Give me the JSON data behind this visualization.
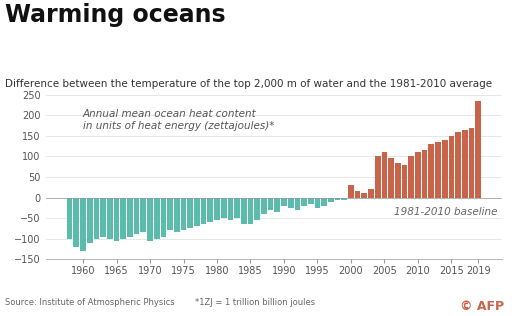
{
  "title": "Warming oceans",
  "subtitle": "Difference between the temperature of the top 2,000 m of water and the 1981-2010 average",
  "annotation": "Annual mean ocean heat content\nin units of heat energy (zettajoules)*",
  "baseline_label": "1981-2010 baseline",
  "source_text": "Source: Institute of Atmospheric Physics",
  "footnote": "*1ZJ = 1 trillion billion joules",
  "afp_text": "© AFP",
  "years": [
    1958,
    1959,
    1960,
    1961,
    1962,
    1963,
    1964,
    1965,
    1966,
    1967,
    1968,
    1969,
    1970,
    1971,
    1972,
    1973,
    1974,
    1975,
    1976,
    1977,
    1978,
    1979,
    1980,
    1981,
    1982,
    1983,
    1984,
    1985,
    1986,
    1987,
    1988,
    1989,
    1990,
    1991,
    1992,
    1993,
    1994,
    1995,
    1996,
    1997,
    1998,
    1999,
    2000,
    2001,
    2002,
    2003,
    2004,
    2005,
    2006,
    2007,
    2008,
    2009,
    2010,
    2011,
    2012,
    2013,
    2014,
    2015,
    2016,
    2017,
    2018,
    2019
  ],
  "values": [
    -100,
    -120,
    -130,
    -110,
    -100,
    -95,
    -100,
    -105,
    -100,
    -95,
    -90,
    -85,
    -105,
    -100,
    -95,
    -80,
    -85,
    -80,
    -75,
    -70,
    -65,
    -60,
    -55,
    -50,
    -55,
    -50,
    -65,
    -65,
    -55,
    -40,
    -30,
    -35,
    -20,
    -25,
    -30,
    -20,
    -15,
    -25,
    -20,
    -10,
    -5,
    -5,
    30,
    15,
    10,
    20,
    100,
    110,
    95,
    85,
    80,
    100,
    110,
    115,
    130,
    135,
    140,
    150,
    160,
    165,
    170,
    235
  ],
  "color_negative": "#5bbcad",
  "color_positive": "#c8644a",
  "ylim": [
    -150,
    250
  ],
  "yticks": [
    -150,
    -100,
    -50,
    0,
    50,
    100,
    150,
    200,
    250
  ],
  "xticks": [
    1960,
    1965,
    1970,
    1975,
    1980,
    1985,
    1990,
    1995,
    2000,
    2005,
    2010,
    2015,
    2019
  ],
  "background_color": "#ffffff",
  "title_fontsize": 17,
  "subtitle_fontsize": 7.5,
  "tick_fontsize": 7,
  "annotation_fontsize": 7.5,
  "source_fontsize": 6,
  "afp_fontsize": 9
}
